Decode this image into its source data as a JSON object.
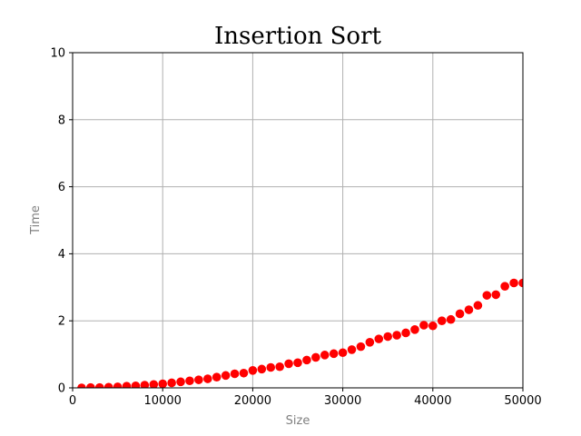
{
  "chart_data": {
    "type": "scatter",
    "title": "Insertion Sort",
    "xlabel": "Size",
    "ylabel": "Time",
    "xlim": [
      0,
      50000
    ],
    "ylim": [
      0,
      10
    ],
    "xticks": [
      "0",
      "10000",
      "20000",
      "30000",
      "40000",
      "50000"
    ],
    "yticks": [
      "0",
      "2",
      "4",
      "6",
      "8",
      "10"
    ],
    "grid": true,
    "marker_color": "#ff0000",
    "series": [
      {
        "x": [
          1000,
          2000,
          3000,
          4000,
          5000,
          6000,
          7000,
          8000,
          9000,
          10000,
          11000,
          12000,
          13000,
          14000,
          15000,
          16000,
          17000,
          18000,
          19000,
          20000,
          21000,
          22000,
          23000,
          24000,
          25000,
          26000,
          27000,
          28000,
          29000,
          30000,
          31000,
          32000,
          33000,
          34000,
          35000,
          36000,
          37000,
          38000,
          39000,
          40000,
          41000,
          42000,
          43000,
          44000,
          45000,
          46000,
          47000,
          48000,
          49000,
          50000
        ],
        "y": [
          0.0,
          0.01,
          0.01,
          0.02,
          0.03,
          0.05,
          0.06,
          0.08,
          0.1,
          0.12,
          0.15,
          0.18,
          0.21,
          0.24,
          0.27,
          0.32,
          0.37,
          0.42,
          0.44,
          0.52,
          0.56,
          0.61,
          0.63,
          0.72,
          0.75,
          0.83,
          0.91,
          0.98,
          1.02,
          1.05,
          1.14,
          1.23,
          1.36,
          1.46,
          1.53,
          1.57,
          1.64,
          1.74,
          1.87,
          1.85,
          2.0,
          2.04,
          2.21,
          2.33,
          2.46,
          2.76,
          2.78,
          3.03,
          3.13,
          3.13
        ]
      }
    ]
  }
}
